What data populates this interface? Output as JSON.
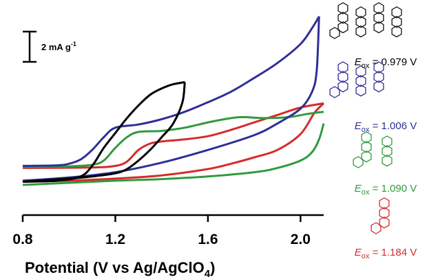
{
  "chart_data": {
    "type": "line",
    "xlabel_main": "Potential (V vs Ag/AgClO",
    "xlabel_sub": "4",
    "xlabel_end": ")",
    "xticks": [
      0.8,
      1.2,
      1.6,
      2.0
    ],
    "xtick_labels": [
      "0.8",
      "1.2",
      "1.6",
      "2.0"
    ],
    "xlim": [
      0.8,
      2.1
    ],
    "ylim": [
      -1.2,
      16.5
    ],
    "ylabel": "",
    "grid": false,
    "scale_bar": {
      "text": "2 mA g",
      "sup": "-1",
      "value": 2
    },
    "series": [
      {
        "color": "#000000",
        "label": {
          "E": "E",
          "sub": "ox",
          "text": " = 0.979 V"
        },
        "forward": [
          [
            0.8,
            0.0
          ],
          [
            0.95,
            0.1
          ],
          [
            1.05,
            0.5
          ],
          [
            1.1,
            1.5
          ],
          [
            1.15,
            3.2
          ],
          [
            1.2,
            4.6
          ],
          [
            1.25,
            6.0
          ],
          [
            1.3,
            7.2
          ],
          [
            1.35,
            8.2
          ],
          [
            1.4,
            8.8
          ],
          [
            1.45,
            9.2
          ],
          [
            1.5,
            9.4
          ]
        ],
        "reverse": [
          [
            1.5,
            9.4
          ],
          [
            1.49,
            7.5
          ],
          [
            1.45,
            5.5
          ],
          [
            1.4,
            4.2
          ],
          [
            1.35,
            3.0
          ],
          [
            1.3,
            2.0
          ],
          [
            1.25,
            1.2
          ],
          [
            1.2,
            0.8
          ],
          [
            1.1,
            0.5
          ],
          [
            1.0,
            0.3
          ],
          [
            0.8,
            0.0
          ]
        ]
      },
      {
        "color": "#2e2e96",
        "label": {
          "E": "E",
          "sub": "ox",
          "text": " = 1.006 V"
        },
        "forward": [
          [
            0.8,
            1.5
          ],
          [
            0.95,
            1.55
          ],
          [
            1.0,
            1.7
          ],
          [
            1.05,
            2.1
          ],
          [
            1.1,
            3.0
          ],
          [
            1.15,
            4.2
          ],
          [
            1.2,
            5.1
          ],
          [
            1.3,
            5.4
          ],
          [
            1.4,
            5.9
          ],
          [
            1.5,
            6.6
          ],
          [
            1.6,
            7.5
          ],
          [
            1.7,
            8.5
          ],
          [
            1.8,
            9.8
          ],
          [
            1.9,
            11.2
          ],
          [
            2.0,
            13.0
          ],
          [
            2.05,
            14.5
          ],
          [
            2.08,
            15.6
          ]
        ],
        "reverse": [
          [
            2.08,
            15.6
          ],
          [
            2.07,
            10.5
          ],
          [
            2.05,
            8.5
          ],
          [
            2.0,
            6.9
          ],
          [
            1.9,
            5.5
          ],
          [
            1.8,
            4.4
          ],
          [
            1.6,
            3.0
          ],
          [
            1.4,
            1.8
          ],
          [
            1.2,
            0.9
          ],
          [
            1.0,
            0.4
          ],
          [
            0.8,
            0.1
          ]
        ]
      },
      {
        "color": "#2f9a3e",
        "label": {
          "E": "E",
          "sub": "ox",
          "text": " = 1.090 V"
        },
        "forward": [
          [
            0.8,
            1.4
          ],
          [
            1.0,
            1.45
          ],
          [
            1.1,
            1.6
          ],
          [
            1.15,
            2.0
          ],
          [
            1.2,
            3.2
          ],
          [
            1.25,
            4.2
          ],
          [
            1.3,
            4.7
          ],
          [
            1.4,
            4.8
          ],
          [
            1.5,
            5.1
          ],
          [
            1.6,
            5.6
          ],
          [
            1.7,
            6.0
          ],
          [
            1.75,
            6.1
          ],
          [
            1.85,
            6.0
          ],
          [
            1.95,
            6.1
          ],
          [
            2.03,
            6.4
          ],
          [
            2.1,
            6.6
          ]
        ],
        "reverse": [
          [
            2.1,
            5.5
          ],
          [
            2.08,
            4.0
          ],
          [
            2.05,
            2.8
          ],
          [
            2.0,
            2.0
          ],
          [
            1.9,
            1.3
          ],
          [
            1.8,
            0.9
          ],
          [
            1.6,
            0.5
          ],
          [
            1.4,
            0.25
          ],
          [
            1.2,
            0.1
          ],
          [
            1.0,
            -0.1
          ],
          [
            0.8,
            -0.3
          ]
        ]
      },
      {
        "color": "#d62b2b",
        "label": {
          "E": "E",
          "sub": "ox",
          "text": " = 1.184 V"
        },
        "forward": [
          [
            0.8,
            1.3
          ],
          [
            1.1,
            1.35
          ],
          [
            1.2,
            1.5
          ],
          [
            1.25,
            1.9
          ],
          [
            1.3,
            3.0
          ],
          [
            1.35,
            3.6
          ],
          [
            1.4,
            3.8
          ],
          [
            1.5,
            4.0
          ],
          [
            1.6,
            4.3
          ],
          [
            1.7,
            4.9
          ],
          [
            1.8,
            5.6
          ],
          [
            1.9,
            6.3
          ],
          [
            2.0,
            7.0
          ],
          [
            2.1,
            7.4
          ]
        ],
        "reverse": [
          [
            2.1,
            7.4
          ],
          [
            2.06,
            6.5
          ],
          [
            2.0,
            4.5
          ],
          [
            1.9,
            3.0
          ],
          [
            1.8,
            2.3
          ],
          [
            1.7,
            1.7
          ],
          [
            1.6,
            1.2
          ],
          [
            1.4,
            0.6
          ],
          [
            1.2,
            0.3
          ],
          [
            1.0,
            0.1
          ],
          [
            0.8,
            0.0
          ]
        ]
      }
    ]
  },
  "structures": [
    {
      "name": "tetramer-structure",
      "color": "#111111"
    },
    {
      "name": "trimer-structure",
      "color": "#2e2e96"
    },
    {
      "name": "dimer-structure",
      "color": "#2f9a3e"
    },
    {
      "name": "monomer-structure",
      "color": "#d62b2b"
    }
  ]
}
